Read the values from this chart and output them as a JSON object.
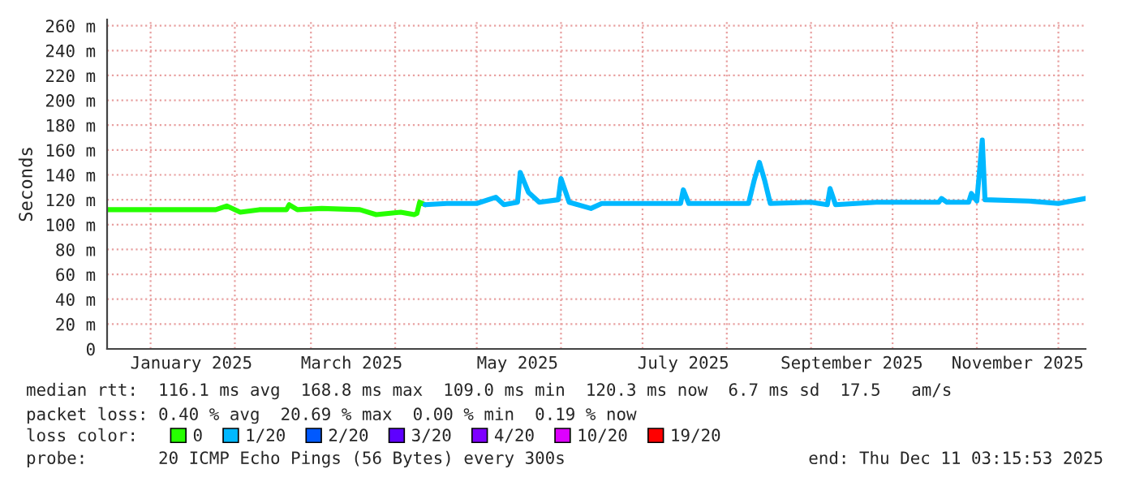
{
  "chart_data": {
    "type": "line",
    "ylabel": "Seconds",
    "legend_title": "loss color:",
    "legend": "bottom",
    "grid": true,
    "marker": "none",
    "line_style": "solid",
    "xlim": [
      "2024-12-16",
      "2025-12-11"
    ],
    "xticks": [
      {
        "value": "2025-01-01",
        "label": null
      },
      {
        "value": "2025-01-16",
        "label": "January 2025"
      },
      {
        "value": "2025-02-01",
        "label": null
      },
      {
        "value": "2025-03-01",
        "label": null
      },
      {
        "value": "2025-03-16",
        "label": "March 2025"
      },
      {
        "value": "2025-04-01",
        "label": null
      },
      {
        "value": "2025-05-01",
        "label": null
      },
      {
        "value": "2025-05-16",
        "label": "May 2025"
      },
      {
        "value": "2025-06-01",
        "label": null
      },
      {
        "value": "2025-07-01",
        "label": null
      },
      {
        "value": "2025-07-16",
        "label": "July 2025"
      },
      {
        "value": "2025-08-01",
        "label": null
      },
      {
        "value": "2025-09-01",
        "label": null
      },
      {
        "value": "2025-09-16",
        "label": "September 2025"
      },
      {
        "value": "2025-10-01",
        "label": null
      },
      {
        "value": "2025-11-01",
        "label": null
      },
      {
        "value": "2025-11-16",
        "label": "November 2025"
      },
      {
        "value": "2025-12-01",
        "label": null
      }
    ],
    "ylim": [
      0,
      265
    ],
    "yticks": [
      {
        "value": 0,
        "label": "0"
      },
      {
        "value": 20,
        "label": "20 m"
      },
      {
        "value": 40,
        "label": "40 m"
      },
      {
        "value": 60,
        "label": "60 m"
      },
      {
        "value": 80,
        "label": "80 m"
      },
      {
        "value": 100,
        "label": "100 m"
      },
      {
        "value": 120,
        "label": "120 m"
      },
      {
        "value": 140,
        "label": "140 m"
      },
      {
        "value": 160,
        "label": "160 m"
      },
      {
        "value": 180,
        "label": "180 m"
      },
      {
        "value": 200,
        "label": "200 m"
      },
      {
        "value": 220,
        "label": "220 m"
      },
      {
        "value": 240,
        "label": "240 m"
      },
      {
        "value": 260,
        "label": "260 m"
      }
    ],
    "series": [
      {
        "name": "0",
        "color": "#26ff00",
        "x": [
          "2024-12-16",
          "2025-01-25",
          "2025-01-29",
          "2025-02-03",
          "2025-02-10",
          "2025-02-20",
          "2025-02-21",
          "2025-02-24",
          "2025-03-05",
          "2025-03-19",
          "2025-03-25",
          "2025-04-03",
          "2025-04-08",
          "2025-04-09",
          "2025-04-10",
          "2025-04-12"
        ],
        "values": [
          112,
          112,
          115,
          110,
          112,
          112,
          116,
          112,
          113,
          112,
          108,
          110,
          108,
          109,
          118,
          116
        ]
      },
      {
        "name": "1/20",
        "color": "#00b8ff",
        "x": [
          "2025-04-12",
          "2025-04-20",
          "2025-05-01",
          "2025-05-08",
          "2025-05-11",
          "2025-05-16",
          "2025-05-17",
          "2025-05-20",
          "2025-05-24",
          "2025-05-31",
          "2025-06-01",
          "2025-06-04",
          "2025-06-12",
          "2025-06-16",
          "2025-07-01",
          "2025-07-15",
          "2025-07-16",
          "2025-07-18",
          "2025-08-09",
          "2025-08-11",
          "2025-08-13",
          "2025-08-15",
          "2025-08-17",
          "2025-09-01",
          "2025-09-07",
          "2025-09-08",
          "2025-09-10",
          "2025-09-25",
          "2025-10-18",
          "2025-10-19",
          "2025-10-21",
          "2025-10-29",
          "2025-10-30",
          "2025-11-01",
          "2025-11-03",
          "2025-11-04",
          "2025-11-20",
          "2025-12-01",
          "2025-12-11"
        ],
        "values": [
          116,
          117,
          117,
          122,
          116,
          118,
          142,
          126,
          118,
          120,
          137,
          118,
          113,
          117,
          117,
          117,
          128,
          117,
          117,
          135,
          150,
          135,
          117,
          118,
          116,
          129,
          116,
          118,
          118,
          121,
          118,
          118,
          125,
          119,
          168,
          120,
          119,
          117,
          121
        ]
      },
      {
        "name": "2/20",
        "color": "#0059ff"
      },
      {
        "name": "3/20",
        "color": "#5e00ff"
      },
      {
        "name": "4/20",
        "color": "#7e00ff"
      },
      {
        "name": "10/20",
        "color": "#dd00ff"
      },
      {
        "name": "19/20",
        "color": "#ff0000"
      }
    ],
    "annotations": [
      "median rtt:  116.1 ms avg  168.8 ms max  109.0 ms min  120.3 ms now  6.7 ms sd  17.5   am/s",
      "packet loss: 0.40 % avg  20.69 % max  0.00 % min  0.19 % now",
      "probe:       20 ICMP Echo Pings (56 Bytes) every 300s",
      "end: Thu Dec 11 03:15:53 2025"
    ]
  }
}
